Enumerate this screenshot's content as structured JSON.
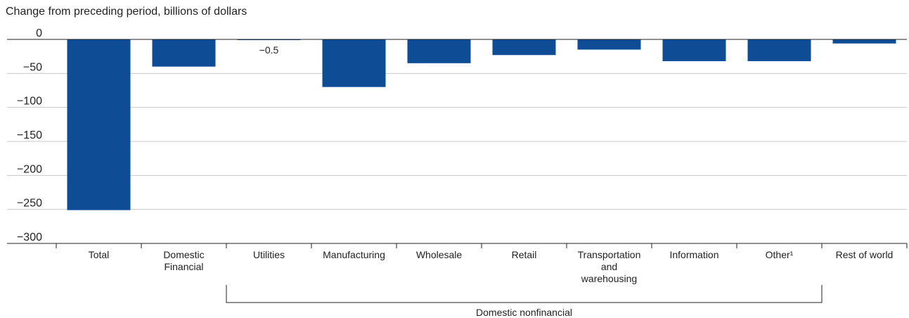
{
  "chart_data": {
    "type": "bar",
    "ylabel": "Change from preceding period, billions of dollars",
    "ylim": [
      -300,
      0
    ],
    "yticks": [
      {
        "value": 0,
        "label": "0"
      },
      {
        "value": -50,
        "label": "−50"
      },
      {
        "value": -100,
        "label": "−100"
      },
      {
        "value": -150,
        "label": "−150"
      },
      {
        "value": -200,
        "label": "−200"
      },
      {
        "value": -250,
        "label": "−250"
      },
      {
        "value": -300,
        "label": "−300"
      }
    ],
    "categories": [
      "Total",
      "Domestic\nFinancial",
      "Utilities",
      "Manufacturing",
      "Wholesale",
      "Retail",
      "Transportation\nand\nwarehousing",
      "Information",
      "Other¹",
      "Rest of world"
    ],
    "values": [
      -251,
      -40,
      -0.5,
      -70,
      -35,
      -23,
      -15,
      -32,
      -32,
      -6
    ],
    "data_labels": [
      {
        "category_index": 2,
        "text": "−0.5"
      }
    ],
    "group_label": {
      "text": "Domestic nonfinancial",
      "start_index": 2,
      "end_index": 8
    },
    "grid": true,
    "bar_color": "#0e4c96",
    "grid_color": "#c8c8c8",
    "axis_color": "#222222"
  }
}
